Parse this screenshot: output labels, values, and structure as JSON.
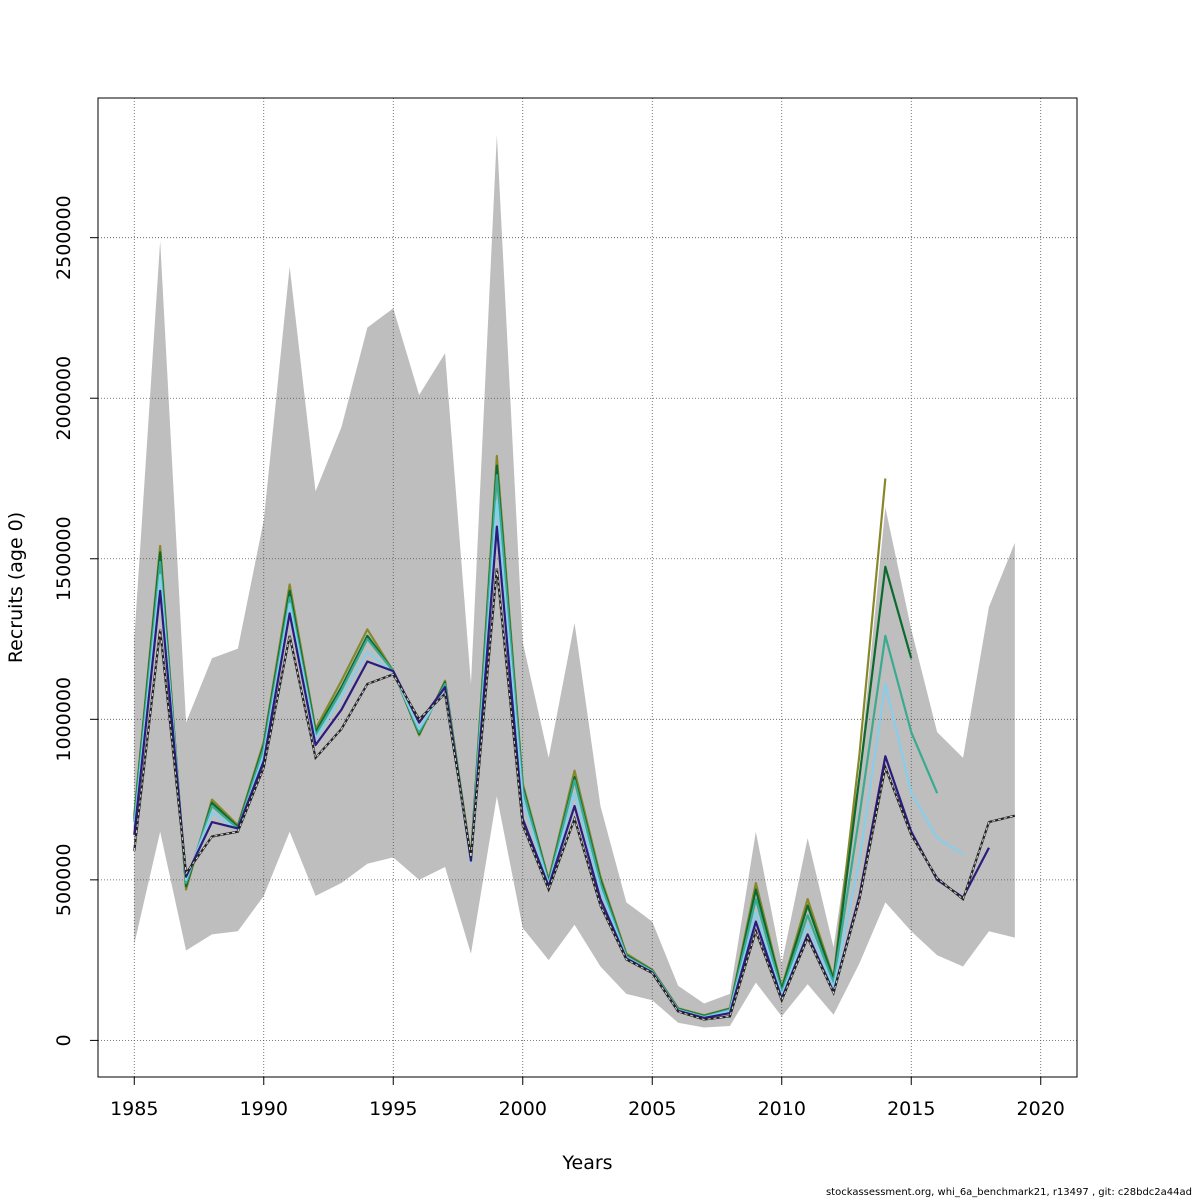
{
  "chart_data": {
    "type": "line",
    "title": "",
    "xlabel": "Years",
    "ylabel": "Recruits (age 0)",
    "xlim": [
      1983.6,
      2021.4
    ],
    "ylim": [
      -114000,
      2935000
    ],
    "x_ticks": [
      1985,
      1990,
      1995,
      2000,
      2005,
      2010,
      2015,
      2020
    ],
    "y_ticks": [
      0,
      500000,
      1000000,
      1500000,
      2000000,
      2500000
    ],
    "grid": true,
    "legend": "none",
    "band": {
      "color": "#bebebe",
      "x": [
        1985,
        1986,
        1987,
        1988,
        1989,
        1990,
        1991,
        1992,
        1993,
        1994,
        1995,
        1996,
        1997,
        1998,
        1999,
        2000,
        2001,
        2002,
        2003,
        2004,
        2005,
        2006,
        2007,
        2008,
        2009,
        2010,
        2011,
        2012,
        2013,
        2014,
        2015,
        2016,
        2017,
        2018,
        2019
      ],
      "upper": [
        1250000,
        2490000,
        990000,
        1190000,
        1220000,
        1620000,
        2410000,
        1710000,
        1910000,
        2220000,
        2280000,
        2010000,
        2140000,
        1110000,
        2820000,
        1240000,
        880000,
        1300000,
        730000,
        430000,
        370000,
        170000,
        115000,
        145000,
        650000,
        240000,
        630000,
        290000,
        840000,
        1660000,
        1280000,
        960000,
        880000,
        1350000,
        1550000
      ],
      "lower": [
        300000,
        650000,
        280000,
        330000,
        340000,
        450000,
        650000,
        450000,
        490000,
        550000,
        570000,
        500000,
        540000,
        270000,
        760000,
        350000,
        250000,
        360000,
        230000,
        145000,
        125000,
        55000,
        40000,
        45000,
        180000,
        75000,
        175000,
        80000,
        240000,
        430000,
        340000,
        265000,
        230000,
        340000,
        320000
      ]
    },
    "series": [
      {
        "color": "#87882a",
        "x": [
          1985,
          1986,
          1987,
          1988,
          1989,
          1990,
          1991,
          1992,
          1993,
          1994,
          1995,
          1996,
          1997,
          1998,
          1999,
          2000,
          2001,
          2002,
          2003,
          2004,
          2005,
          2006,
          2007,
          2008,
          2009,
          2010,
          2011,
          2012,
          2013,
          2014
        ],
        "values": [
          700000,
          1540000,
          470000,
          750000,
          670000,
          930000,
          1420000,
          970000,
          1120000,
          1280000,
          1150000,
          950000,
          1120000,
          570000,
          1820000,
          800000,
          500000,
          840000,
          510000,
          270000,
          220000,
          100000,
          78000,
          100000,
          490000,
          165000,
          440000,
          195000,
          890000,
          1750000
        ]
      },
      {
        "color": "#0c6a2f",
        "x": [
          1985,
          1986,
          1987,
          1988,
          1989,
          1990,
          1991,
          1992,
          1993,
          1994,
          1995,
          1996,
          1997,
          1998,
          1999,
          2000,
          2001,
          2002,
          2003,
          2004,
          2005,
          2006,
          2007,
          2008,
          2009,
          2010,
          2011,
          2012,
          2013,
          2014,
          2015
        ],
        "values": [
          690000,
          1520000,
          480000,
          740000,
          665000,
          920000,
          1400000,
          960000,
          1100000,
          1260000,
          1150000,
          955000,
          1115000,
          565000,
          1790000,
          790000,
          495000,
          820000,
          500000,
          265000,
          218000,
          98000,
          76000,
          98000,
          470000,
          160000,
          420000,
          190000,
          820000,
          1475000,
          1190000
        ]
      },
      {
        "color": "#3aaa90",
        "x": [
          1985,
          1986,
          1987,
          1988,
          1989,
          1990,
          1991,
          1992,
          1993,
          1994,
          1995,
          1996,
          1997,
          1998,
          1999,
          2000,
          2001,
          2002,
          2003,
          2004,
          2005,
          2006,
          2007,
          2008,
          2009,
          2010,
          2011,
          2012,
          2013,
          2014,
          2015,
          2016
        ],
        "values": [
          680000,
          1490000,
          490000,
          730000,
          660000,
          910000,
          1380000,
          950000,
          1090000,
          1250000,
          1150000,
          960000,
          1110000,
          560000,
          1760000,
          780000,
          490000,
          810000,
          490000,
          262000,
          216000,
          96000,
          74000,
          96000,
          440000,
          150000,
          390000,
          180000,
          700000,
          1260000,
          960000,
          770000
        ]
      },
      {
        "color": "#87ceeb",
        "x": [
          1985,
          1986,
          1987,
          1988,
          1989,
          1990,
          1991,
          1992,
          1993,
          1994,
          1995,
          1996,
          1997,
          1998,
          1999,
          2000,
          2001,
          2002,
          2003,
          2004,
          2005,
          2006,
          2007,
          2008,
          2009,
          2010,
          2011,
          2012,
          2013,
          2014,
          2015,
          2016,
          2017
        ],
        "values": [
          660000,
          1450000,
          500000,
          710000,
          655000,
          890000,
          1360000,
          940000,
          1070000,
          1210000,
          1145000,
          970000,
          1100000,
          555000,
          1680000,
          750000,
          485000,
          770000,
          470000,
          258000,
          214000,
          94000,
          72000,
          92000,
          400000,
          140000,
          360000,
          165000,
          560000,
          1110000,
          770000,
          630000,
          580000
        ]
      },
      {
        "color": "#2c1a7e",
        "x": [
          1985,
          1986,
          1987,
          1988,
          1989,
          1990,
          1991,
          1992,
          1993,
          1994,
          1995,
          1996,
          1997,
          1998,
          1999,
          2000,
          2001,
          2002,
          2003,
          2004,
          2005,
          2006,
          2007,
          2008,
          2009,
          2010,
          2011,
          2012,
          2013,
          2014,
          2015,
          2016,
          2017,
          2018
        ],
        "values": [
          640000,
          1400000,
          510000,
          680000,
          660000,
          870000,
          1330000,
          920000,
          1030000,
          1180000,
          1150000,
          990000,
          1100000,
          560000,
          1600000,
          690000,
          480000,
          730000,
          440000,
          255000,
          212000,
          92000,
          70000,
          85000,
          370000,
          130000,
          330000,
          150000,
          450000,
          885000,
          650000,
          500000,
          445000,
          600000
        ]
      },
      {
        "color": "#222222",
        "dashed": true,
        "x": [
          1985,
          1986,
          1987,
          1988,
          1989,
          1990,
          1991,
          1992,
          1993,
          1994,
          1995,
          1996,
          1997,
          1998,
          1999,
          2000,
          2001,
          2002,
          2003,
          2004,
          2005,
          2006,
          2007,
          2008,
          2009,
          2010,
          2011,
          2012,
          2013,
          2014,
          2015,
          2016,
          2017,
          2018,
          2019
        ],
        "values": [
          590000,
          1280000,
          520000,
          635000,
          650000,
          850000,
          1260000,
          880000,
          970000,
          1110000,
          1140000,
          1000000,
          1080000,
          570000,
          1470000,
          670000,
          470000,
          690000,
          420000,
          252000,
          210000,
          90000,
          65000,
          75000,
          340000,
          125000,
          320000,
          148000,
          440000,
          850000,
          640000,
          505000,
          440000,
          680000,
          700000
        ]
      }
    ]
  },
  "footer": "stockassessment.org, whi_6a_benchmark21, r13497 , git: c28bdc2a44ad"
}
